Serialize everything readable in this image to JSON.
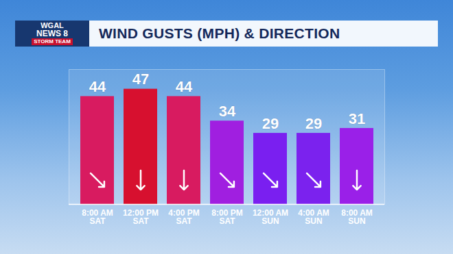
{
  "header": {
    "logo": [
      "WGAL",
      "NEWS 8",
      "STORM TEAM"
    ]
  },
  "chart_data": {
    "type": "bar",
    "title": "WIND GUSTS (MPH) & DIRECTION",
    "categories": [
      "8:00 AM\nSAT",
      "12:00 PM\nSAT",
      "4:00 PM\nSAT",
      "8:00 PM\nSAT",
      "12:00 AM\nSUN",
      "4:00 AM\nSUN",
      "8:00 AM\nSUN"
    ],
    "values": [
      44,
      47,
      44,
      34,
      29,
      29,
      31
    ],
    "colors": [
      "#d81b60",
      "#d7102f",
      "#d81b60",
      "#a01fe0",
      "#7a1ff0",
      "#7b22ee",
      "#9a20e8"
    ],
    "wind_from_deg": [
      315,
      0,
      0,
      315,
      315,
      315,
      0
    ],
    "ylim": [
      0,
      55
    ],
    "yticks": [],
    "tick_labels": "x",
    "data_labels": true,
    "grid": false
  }
}
